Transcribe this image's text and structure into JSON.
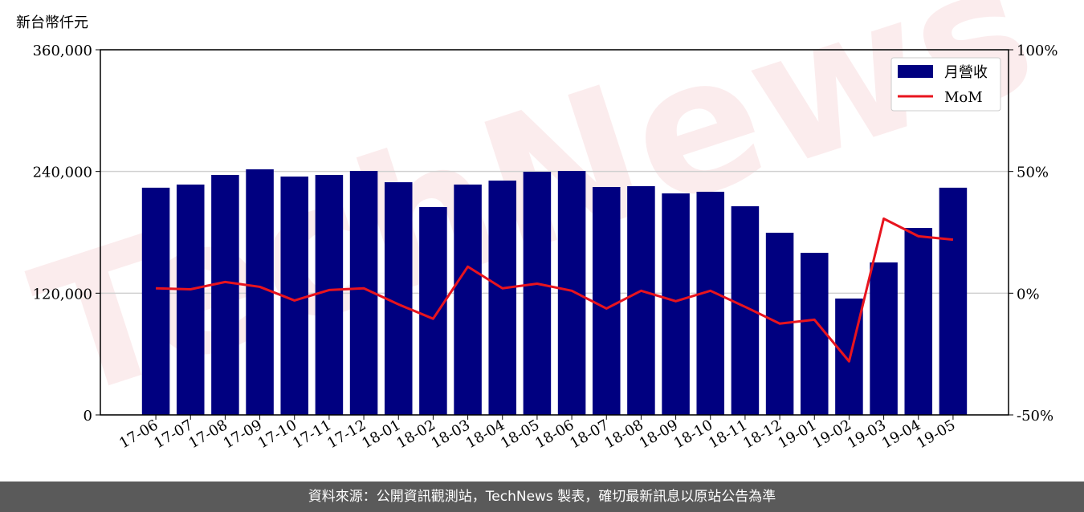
{
  "chart_data": {
    "type": "bar",
    "y_label": "新台幣仟元",
    "watermark": "TechNews",
    "categories": [
      "17-06",
      "17-07",
      "17-08",
      "17-09",
      "17-10",
      "17-11",
      "17-12",
      "18-01",
      "18-02",
      "18-03",
      "18-04",
      "18-05",
      "18-06",
      "18-07",
      "18-08",
      "18-09",
      "18-10",
      "18-11",
      "18-12",
      "19-01",
      "19-02",
      "19-03",
      "19-04",
      "19-05"
    ],
    "series": [
      {
        "name": "月營收",
        "type": "bar",
        "color": "#000080",
        "values": [
          224000,
          227100,
          236600,
          242100,
          235000,
          236600,
          240500,
          229400,
          204900,
          227100,
          231000,
          239700,
          240500,
          224700,
          225500,
          218400,
          220000,
          205700,
          179600,
          159800,
          114700,
          150300,
          184300,
          224000
        ]
      },
      {
        "name": "MoM",
        "type": "line",
        "axis": "y2",
        "color": "#e8141e",
        "values": [
          2.0,
          1.6,
          4.6,
          2.6,
          -3.0,
          1.3,
          2.0,
          -4.6,
          -10.5,
          10.9,
          2.0,
          3.9,
          1.0,
          -6.3,
          1.0,
          -3.3,
          1.0,
          -5.6,
          -12.5,
          -10.9,
          -28.0,
          30.6,
          23.4,
          22.0
        ]
      }
    ],
    "ylim": [
      0,
      360000
    ],
    "yticks": [
      0,
      {
        "value": 120000,
        "label": "120,000"
      },
      {
        "value": 240000,
        "label": "240,000"
      },
      {
        "value": 360000,
        "label": "360,000"
      }
    ],
    "y2lim": [
      -50,
      100
    ],
    "y2ticks": [
      {
        "value": -50,
        "label": "-50%"
      },
      {
        "value": 0,
        "label": "0%"
      },
      {
        "value": 50,
        "label": "50%"
      },
      {
        "value": 100,
        "label": "100%"
      }
    ],
    "grid": true,
    "legend": "upper right"
  },
  "footer": "資料來源：公開資訊觀測站，TechNews 製表，確切最新訊息以原站公告為準"
}
